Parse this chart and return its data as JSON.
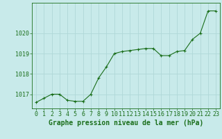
{
  "x": [
    0,
    1,
    2,
    3,
    4,
    5,
    6,
    7,
    8,
    9,
    10,
    11,
    12,
    13,
    14,
    15,
    16,
    17,
    18,
    19,
    20,
    21,
    22,
    23
  ],
  "y": [
    1016.6,
    1016.8,
    1017.0,
    1017.0,
    1016.7,
    1016.65,
    1016.65,
    1017.0,
    1017.8,
    1018.35,
    1019.0,
    1019.1,
    1019.15,
    1019.2,
    1019.25,
    1019.25,
    1018.9,
    1018.9,
    1019.1,
    1019.15,
    1019.7,
    1020.0,
    1021.1,
    1021.1
  ],
  "line_color": "#1a6e1a",
  "marker": "+",
  "marker_size": 3,
  "marker_color": "#1a6e1a",
  "bg_color": "#c8eaea",
  "grid_color": "#b0d8d8",
  "xlabel": "Graphe pression niveau de la mer (hPa)",
  "xlabel_color": "#1a6e1a",
  "xlabel_fontsize": 7,
  "tick_color": "#1a6e1a",
  "tick_fontsize": 6,
  "yticks": [
    1017,
    1018,
    1019,
    1020
  ],
  "ylim": [
    1016.3,
    1021.5
  ],
  "xlim": [
    -0.5,
    23.5
  ],
  "xtick_labels": [
    "0",
    "1",
    "2",
    "3",
    "4",
    "5",
    "6",
    "7",
    "8",
    "9",
    "10",
    "11",
    "12",
    "13",
    "14",
    "15",
    "16",
    "17",
    "18",
    "19",
    "20",
    "21",
    "22",
    "23"
  ]
}
